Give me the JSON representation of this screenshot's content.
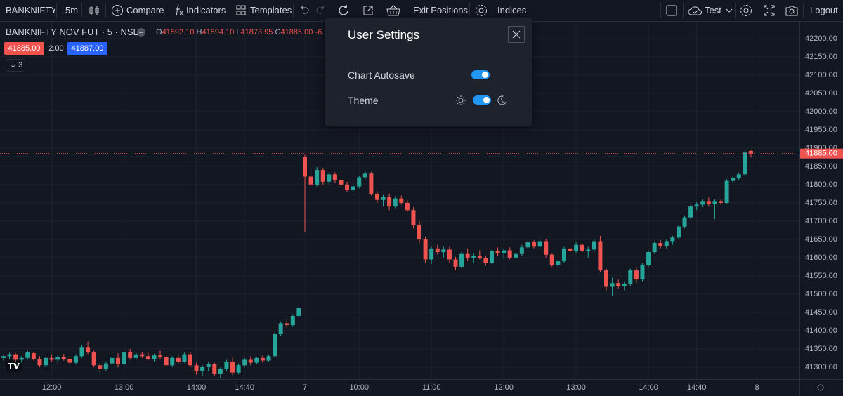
{
  "toolbar": {
    "symbol": "BANKNIFTY N",
    "interval": "5m",
    "compare": "Compare",
    "indicators": "Indicators",
    "templates": "Templates",
    "exit": "Exit Positions",
    "indices": "Indices",
    "user": "Test",
    "logout": "Logout"
  },
  "header": {
    "symbol": "BANKNIFTY NOV FUT · 5 · NSE",
    "ohlc": [
      {
        "k": "O",
        "v": "41892.10"
      },
      {
        "k": "H",
        "v": "41894.10"
      },
      {
        "k": "L",
        "v": "41873.95"
      },
      {
        "k": "C",
        "v": "41885.00"
      }
    ],
    "change": "-6.",
    "bid": "41885.00",
    "spread": "2.00",
    "ask": "41887.00",
    "indicators_count": "3"
  },
  "settings": {
    "title": "User Settings",
    "autosave": "Chart Autosave",
    "theme": "Theme"
  },
  "chart_data": {
    "type": "candlestick",
    "grid": true,
    "colors": {
      "up": "#26a69a",
      "down": "#ef5350"
    },
    "xlim": [
      -0.58,
      132.05
    ],
    "ylim": [
      41267,
      42248
    ],
    "xticks": [
      {
        "value": 8,
        "label": "12:00"
      },
      {
        "value": 20,
        "label": "13:00"
      },
      {
        "value": 32,
        "label": "14:00"
      },
      {
        "value": 40,
        "label": "14:40"
      },
      {
        "value": 50,
        "label": "7"
      },
      {
        "value": 59,
        "label": "10:00"
      },
      {
        "value": 71,
        "label": "11:00"
      },
      {
        "value": 83,
        "label": "12:00"
      },
      {
        "value": 95,
        "label": "13:00"
      },
      {
        "value": 107,
        "label": "14:00"
      },
      {
        "value": 115,
        "label": "14:40"
      },
      {
        "value": 125,
        "label": "8"
      }
    ],
    "yticks": [
      {
        "value": 41300,
        "label": "41300.00"
      },
      {
        "value": 41350,
        "label": "41350.00"
      },
      {
        "value": 41400,
        "label": "41400.00"
      },
      {
        "value": 41450,
        "label": "41450.00"
      },
      {
        "value": 41500,
        "label": "41500.00"
      },
      {
        "value": 41550,
        "label": "41550.00"
      },
      {
        "value": 41600,
        "label": "41600.00"
      },
      {
        "value": 41650,
        "label": "41650.00"
      },
      {
        "value": 41700,
        "label": "41700.00"
      },
      {
        "value": 41750,
        "label": "41750.00"
      },
      {
        "value": 41800,
        "label": "41800.00"
      },
      {
        "value": 41850,
        "label": "41850.00"
      },
      {
        "value": 41900,
        "label": "41900.00"
      },
      {
        "value": 41950,
        "label": "41950.00"
      },
      {
        "value": 42000,
        "label": "42000.00"
      },
      {
        "value": 42050,
        "label": "42050.00"
      },
      {
        "value": 42100,
        "label": "42100.00"
      },
      {
        "value": 42150,
        "label": "42150.00"
      },
      {
        "value": 42200,
        "label": "42200.00"
      }
    ],
    "last_price": {
      "value": 41885,
      "label": "41885.00"
    },
    "candles": [
      [
        41325,
        41335,
        41318,
        41330
      ],
      [
        41330,
        41340,
        41322,
        41335
      ],
      [
        41335,
        41338,
        41315,
        41320
      ],
      [
        41320,
        41330,
        41312,
        41325
      ],
      [
        41325,
        41345,
        41320,
        41340
      ],
      [
        41338,
        41342,
        41318,
        41322
      ],
      [
        41322,
        41330,
        41300,
        41305
      ],
      [
        41305,
        41328,
        41300,
        41325
      ],
      [
        41325,
        41335,
        41315,
        41320
      ],
      [
        41320,
        41332,
        41310,
        41328
      ],
      [
        41328,
        41336,
        41318,
        41322
      ],
      [
        41322,
        41330,
        41308,
        41312
      ],
      [
        41312,
        41335,
        41308,
        41330
      ],
      [
        41330,
        41360,
        41325,
        41355
      ],
      [
        41355,
        41370,
        41335,
        41340
      ],
      [
        41340,
        41345,
        41300,
        41305
      ],
      [
        41305,
        41312,
        41285,
        41295
      ],
      [
        41295,
        41315,
        41290,
        41310
      ],
      [
        41310,
        41330,
        41305,
        41325
      ],
      [
        41325,
        41338,
        41300,
        41308
      ],
      [
        41308,
        41345,
        41305,
        41340
      ],
      [
        41340,
        41350,
        41320,
        41325
      ],
      [
        41325,
        41340,
        41318,
        41335
      ],
      [
        41335,
        41342,
        41325,
        41330
      ],
      [
        41330,
        41340,
        41318,
        41322
      ],
      [
        41322,
        41336,
        41315,
        41332
      ],
      [
        41332,
        41345,
        41322,
        41328
      ],
      [
        41328,
        41334,
        41300,
        41305
      ],
      [
        41305,
        41330,
        41300,
        41325
      ],
      [
        41325,
        41335,
        41308,
        41315
      ],
      [
        41315,
        41340,
        41312,
        41335
      ],
      [
        41335,
        41342,
        41300,
        41305
      ],
      [
        41305,
        41312,
        41280,
        41290
      ],
      [
        41290,
        41305,
        41275,
        41300
      ],
      [
        41300,
        41315,
        41290,
        41308
      ],
      [
        41308,
        41312,
        41275,
        41282
      ],
      [
        41282,
        41300,
        41270,
        41295
      ],
      [
        41295,
        41320,
        41290,
        41315
      ],
      [
        41315,
        41325,
        41278,
        41285
      ],
      [
        41285,
        41310,
        41280,
        41305
      ],
      [
        41305,
        41325,
        41300,
        41320
      ],
      [
        41320,
        41330,
        41305,
        41312
      ],
      [
        41312,
        41328,
        41308,
        41325
      ],
      [
        41325,
        41332,
        41312,
        41318
      ],
      [
        41318,
        41335,
        41315,
        41330
      ],
      [
        41330,
        41395,
        41328,
        41390
      ],
      [
        41390,
        41425,
        41385,
        41420
      ],
      [
        41420,
        41432,
        41408,
        41415
      ],
      [
        41415,
        41445,
        41410,
        41440
      ],
      [
        41440,
        41468,
        41435,
        41462
      ],
      [
        41875,
        41882,
        41670,
        41822
      ],
      [
        41822,
        41842,
        41795,
        41800
      ],
      [
        41800,
        41848,
        41795,
        41840
      ],
      [
        41840,
        41846,
        41800,
        41808
      ],
      [
        41808,
        41835,
        41800,
        41828
      ],
      [
        41828,
        41834,
        41805,
        41812
      ],
      [
        41812,
        41820,
        41795,
        41800
      ],
      [
        41800,
        41808,
        41780,
        41785
      ],
      [
        41785,
        41805,
        41780,
        41795
      ],
      [
        41795,
        41825,
        41790,
        41820
      ],
      [
        41820,
        41838,
        41812,
        41830
      ],
      [
        41830,
        41835,
        41770,
        41775
      ],
      [
        41775,
        41782,
        41750,
        41758
      ],
      [
        41758,
        41772,
        41740,
        41765
      ],
      [
        41765,
        41775,
        41730,
        41740
      ],
      [
        41740,
        41768,
        41735,
        41762
      ],
      [
        41762,
        41770,
        41745,
        41750
      ],
      [
        41750,
        41758,
        41725,
        41730
      ],
      [
        41730,
        41738,
        41680,
        41690
      ],
      [
        41690,
        41700,
        41640,
        41650
      ],
      [
        41650,
        41658,
        41585,
        41595
      ],
      [
        41595,
        41630,
        41582,
        41625
      ],
      [
        41625,
        41635,
        41608,
        41615
      ],
      [
        41615,
        41630,
        41600,
        41622
      ],
      [
        41622,
        41630,
        41585,
        41595
      ],
      [
        41595,
        41602,
        41565,
        41575
      ],
      [
        41575,
        41615,
        41570,
        41610
      ],
      [
        41610,
        41625,
        41590,
        41600
      ],
      [
        41600,
        41612,
        41585,
        41605
      ],
      [
        41605,
        41620,
        41595,
        41598
      ],
      [
        41598,
        41605,
        41578,
        41585
      ],
      [
        41585,
        41622,
        41582,
        41618
      ],
      [
        41618,
        41628,
        41605,
        41612
      ],
      [
        41612,
        41625,
        41600,
        41620
      ],
      [
        41620,
        41628,
        41595,
        41600
      ],
      [
        41600,
        41615,
        41595,
        41610
      ],
      [
        41610,
        41635,
        41605,
        41628
      ],
      [
        41628,
        41650,
        41620,
        41642
      ],
      [
        41642,
        41648,
        41625,
        41630
      ],
      [
        41630,
        41655,
        41625,
        41645
      ],
      [
        41645,
        41652,
        41600,
        41608
      ],
      [
        41608,
        41612,
        41575,
        41580
      ],
      [
        41580,
        41595,
        41570,
        41590
      ],
      [
        41590,
        41630,
        41585,
        41625
      ],
      [
        41625,
        41635,
        41612,
        41618
      ],
      [
        41618,
        41642,
        41612,
        41635
      ],
      [
        41635,
        41640,
        41612,
        41618
      ],
      [
        41618,
        41630,
        41600,
        41622
      ],
      [
        41622,
        41652,
        41615,
        41645
      ],
      [
        41645,
        41660,
        41560,
        41565
      ],
      [
        41565,
        41570,
        41510,
        41520
      ],
      [
        41520,
        41545,
        41495,
        41530
      ],
      [
        41530,
        41540,
        41515,
        41522
      ],
      [
        41522,
        41535,
        41510,
        41528
      ],
      [
        41528,
        41570,
        41522,
        41565
      ],
      [
        41565,
        41575,
        41530,
        41540
      ],
      [
        41540,
        41585,
        41535,
        41580
      ],
      [
        41580,
        41620,
        41575,
        41615
      ],
      [
        41615,
        41645,
        41610,
        41640
      ],
      [
        41640,
        41648,
        41625,
        41632
      ],
      [
        41632,
        41650,
        41625,
        41645
      ],
      [
        41645,
        41660,
        41635,
        41655
      ],
      [
        41655,
        41690,
        41650,
        41685
      ],
      [
        41685,
        41715,
        41680,
        41710
      ],
      [
        41710,
        41745,
        41705,
        41740
      ],
      [
        41740,
        41752,
        41730,
        41745
      ],
      [
        41745,
        41760,
        41738,
        41755
      ],
      [
        41755,
        41765,
        41740,
        41748
      ],
      [
        41748,
        41760,
        41705,
        41755
      ],
      [
        41755,
        41760,
        41745,
        41750
      ],
      [
        41750,
        41815,
        41748,
        41810
      ],
      [
        41810,
        41822,
        41805,
        41818
      ],
      [
        41818,
        41832,
        41812,
        41828
      ],
      [
        41828,
        41895,
        41825,
        41888
      ],
      [
        41892.1,
        41894.1,
        41873.95,
        41885
      ]
    ]
  }
}
